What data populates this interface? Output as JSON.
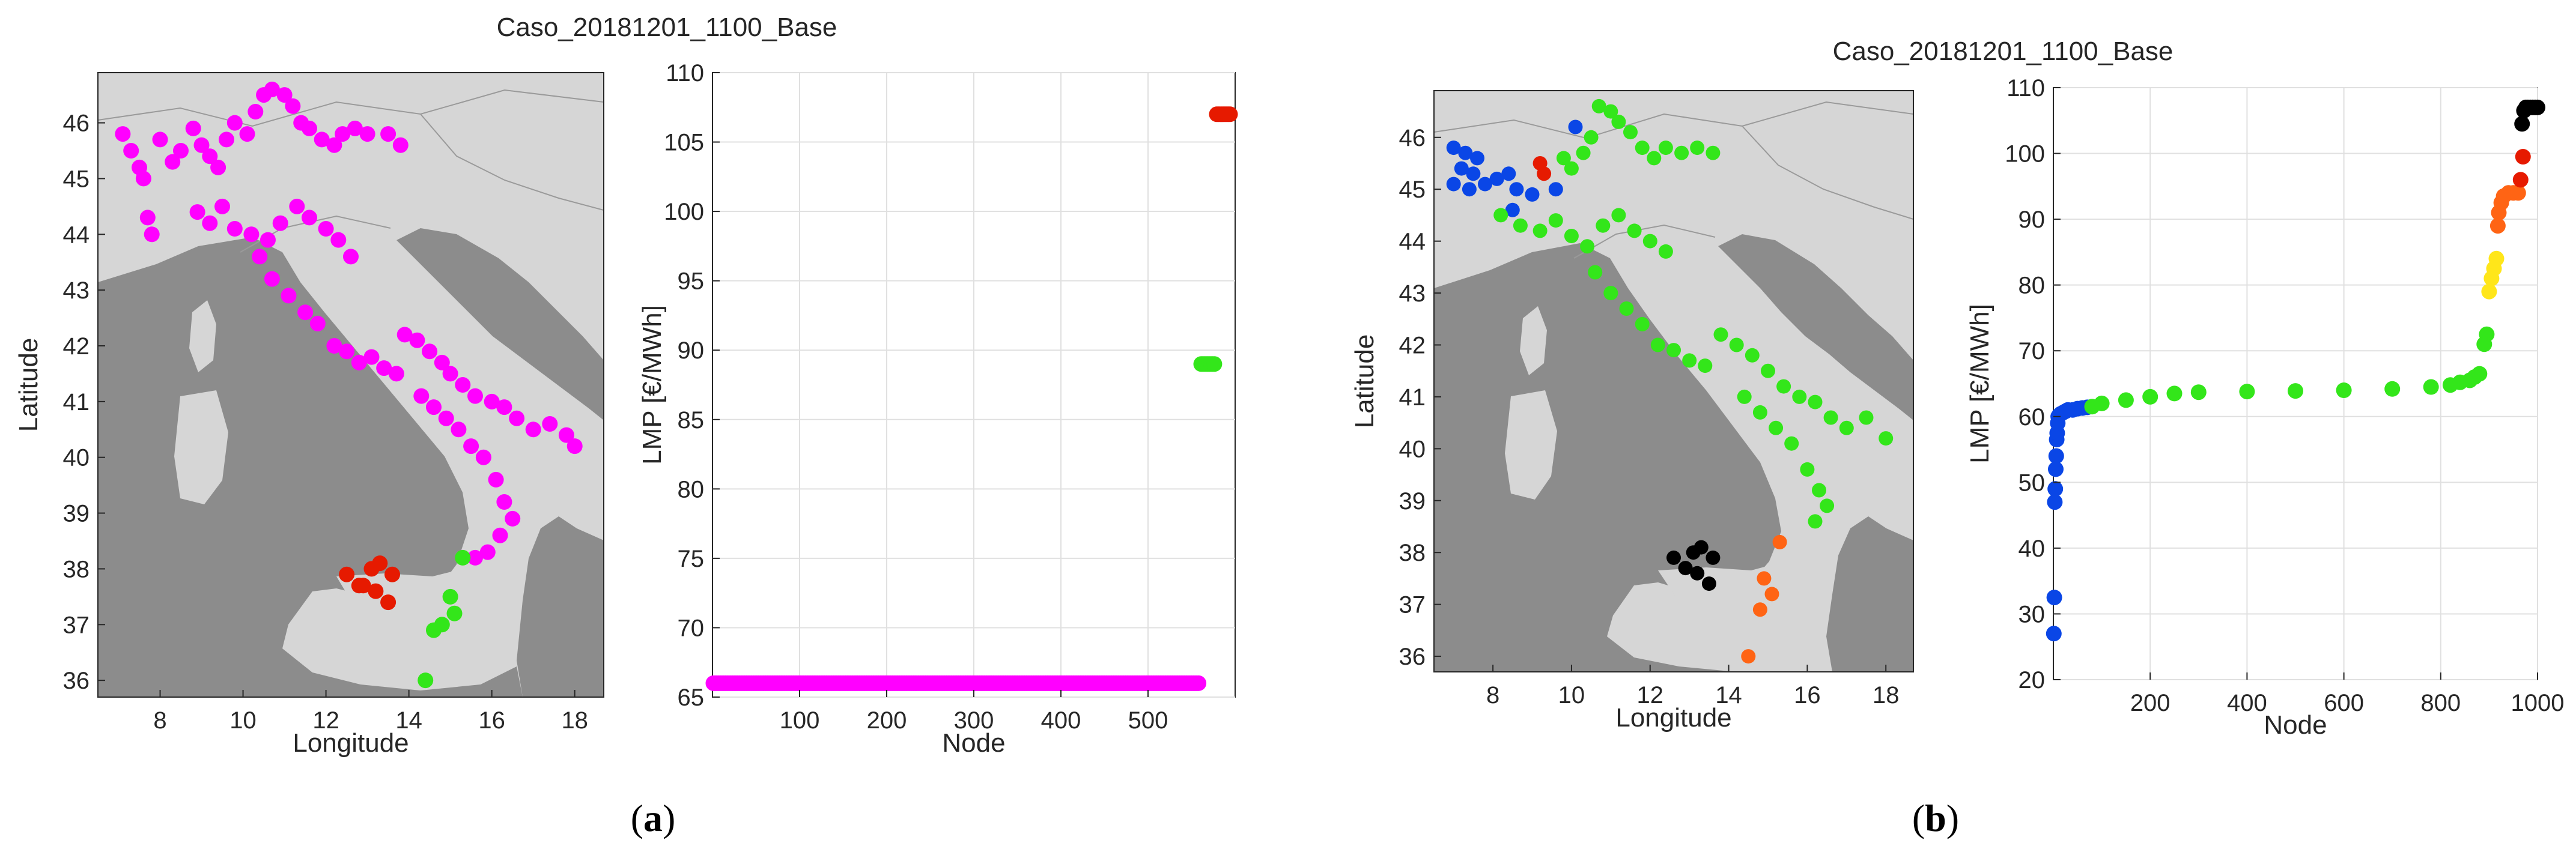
{
  "figure": {
    "panel_a": {
      "title": "Caso_20181201_1100_Base",
      "caption_letter": "a",
      "map": {
        "xlabel": "Longitude",
        "ylabel": "Latitude",
        "xticks": [
          "8",
          "10",
          "12",
          "14",
          "16",
          "18"
        ],
        "yticks": [
          "36",
          "37",
          "38",
          "39",
          "40",
          "41",
          "42",
          "43",
          "44",
          "45",
          "46"
        ]
      },
      "lmp": {
        "xlabel": "Node",
        "ylabel": "LMP [€/MWh]",
        "xticks": [
          "100",
          "200",
          "300",
          "400",
          "500"
        ],
        "yticks": [
          "65",
          "70",
          "75",
          "80",
          "85",
          "90",
          "95",
          "100",
          "105",
          "110"
        ]
      }
    },
    "panel_b": {
      "title": "Caso_20181201_1100_Base",
      "caption_letter": "b",
      "map": {
        "xlabel": "Longitude",
        "ylabel": "Latitude",
        "xticks": [
          "8",
          "10",
          "12",
          "14",
          "16",
          "18"
        ],
        "yticks": [
          "36",
          "37",
          "38",
          "39",
          "40",
          "41",
          "42",
          "43",
          "44",
          "45",
          "46"
        ]
      },
      "lmp": {
        "xlabel": "Node",
        "ylabel": "LMP [€/MWh]",
        "xticks": [
          "200",
          "400",
          "600",
          "800",
          "1000"
        ],
        "yticks": [
          "20",
          "30",
          "40",
          "50",
          "60",
          "70",
          "80",
          "90",
          "100",
          "110"
        ]
      }
    }
  },
  "colors": {
    "magenta": "#ff00ff",
    "red": "#e61a00",
    "green": "#33e61a",
    "blue": "#0a46e6",
    "black": "#000000",
    "orange": "#ff6414",
    "yellow": "#ffe61a",
    "land": "#d6d6d6",
    "sea": "#8c8c8c",
    "axis": "#262626",
    "grid": "#e0e0e0"
  },
  "chart_data": [
    {
      "type": "scatter",
      "panel": "a-map",
      "xlabel": "Longitude",
      "ylabel": "Latitude",
      "xlim": [
        6.5,
        18.7
      ],
      "ylim": [
        35.7,
        46.9
      ],
      "series": [
        {
          "color": "#ff00ff",
          "points": [
            [
              7.1,
              45.8
            ],
            [
              7.3,
              45.5
            ],
            [
              7.5,
              45.2
            ],
            [
              7.6,
              45.0
            ],
            [
              7.7,
              44.3
            ],
            [
              7.8,
              44.0
            ],
            [
              8.0,
              45.7
            ],
            [
              8.3,
              45.3
            ],
            [
              8.5,
              45.5
            ],
            [
              8.8,
              45.9
            ],
            [
              9.0,
              45.6
            ],
            [
              9.2,
              45.4
            ],
            [
              9.4,
              45.2
            ],
            [
              9.6,
              45.7
            ],
            [
              9.8,
              46.0
            ],
            [
              10.1,
              45.8
            ],
            [
              10.3,
              46.2
            ],
            [
              10.5,
              46.5
            ],
            [
              10.7,
              46.6
            ],
            [
              11.0,
              46.5
            ],
            [
              11.2,
              46.3
            ],
            [
              11.4,
              46.0
            ],
            [
              11.6,
              45.9
            ],
            [
              11.9,
              45.7
            ],
            [
              12.2,
              45.6
            ],
            [
              12.4,
              45.8
            ],
            [
              12.7,
              45.9
            ],
            [
              13.0,
              45.8
            ],
            [
              13.5,
              45.8
            ],
            [
              13.8,
              45.6
            ],
            [
              8.9,
              44.4
            ],
            [
              9.2,
              44.2
            ],
            [
              9.5,
              44.5
            ],
            [
              9.8,
              44.1
            ],
            [
              10.2,
              44.0
            ],
            [
              10.6,
              43.9
            ],
            [
              10.9,
              44.2
            ],
            [
              11.3,
              44.5
            ],
            [
              11.6,
              44.3
            ],
            [
              12.0,
              44.1
            ],
            [
              12.3,
              43.9
            ],
            [
              12.6,
              43.6
            ],
            [
              10.4,
              43.6
            ],
            [
              10.7,
              43.2
            ],
            [
              11.1,
              42.9
            ],
            [
              11.5,
              42.6
            ],
            [
              11.8,
              42.4
            ],
            [
              12.2,
              42.0
            ],
            [
              12.5,
              41.9
            ],
            [
              12.8,
              41.7
            ],
            [
              13.1,
              41.8
            ],
            [
              13.4,
              41.6
            ],
            [
              13.7,
              41.5
            ],
            [
              13.9,
              42.2
            ],
            [
              14.2,
              42.1
            ],
            [
              14.5,
              41.9
            ],
            [
              14.8,
              41.7
            ],
            [
              15.0,
              41.5
            ],
            [
              15.3,
              41.3
            ],
            [
              15.6,
              41.1
            ],
            [
              16.0,
              41.0
            ],
            [
              16.3,
              40.9
            ],
            [
              16.6,
              40.7
            ],
            [
              17.0,
              40.5
            ],
            [
              17.4,
              40.6
            ],
            [
              17.8,
              40.4
            ],
            [
              18.0,
              40.2
            ],
            [
              14.3,
              41.1
            ],
            [
              14.6,
              40.9
            ],
            [
              14.9,
              40.7
            ],
            [
              15.2,
              40.5
            ],
            [
              15.5,
              40.2
            ],
            [
              15.8,
              40.0
            ],
            [
              16.1,
              39.6
            ],
            [
              16.3,
              39.2
            ],
            [
              16.5,
              38.9
            ],
            [
              16.2,
              38.6
            ],
            [
              15.9,
              38.3
            ],
            [
              15.6,
              38.2
            ]
          ]
        },
        {
          "color": "#e61a00",
          "points": [
            [
              12.5,
              37.9
            ],
            [
              12.8,
              37.7
            ],
            [
              13.1,
              38.0
            ],
            [
              13.3,
              38.1
            ],
            [
              13.6,
              37.9
            ],
            [
              13.5,
              37.4
            ],
            [
              13.2,
              37.6
            ],
            [
              12.9,
              37.7
            ]
          ]
        },
        {
          "color": "#33e61a",
          "points": [
            [
              15.0,
              37.5
            ],
            [
              15.1,
              37.2
            ],
            [
              14.8,
              37.0
            ],
            [
              14.6,
              36.9
            ],
            [
              14.4,
              36.0
            ],
            [
              15.3,
              38.2
            ]
          ]
        }
      ]
    },
    {
      "type": "scatter",
      "panel": "a-lmp",
      "xlabel": "Node",
      "ylabel": "LMP [€/MWh]",
      "xlim": [
        0,
        600
      ],
      "ylim": [
        65,
        110
      ],
      "series": [
        {
          "color": "#ff00ff",
          "x_range": [
            1,
            560
          ],
          "y": 66
        },
        {
          "color": "#33e61a",
          "x_range": [
            561,
            578
          ],
          "y": 89
        },
        {
          "color": "#e61a00",
          "x_range": [
            579,
            596
          ],
          "y": 107
        }
      ]
    },
    {
      "type": "scatter",
      "panel": "b-map",
      "xlabel": "Longitude",
      "ylabel": "Latitude",
      "xlim": [
        6.5,
        18.7
      ],
      "ylim": [
        35.7,
        46.9
      ],
      "series": [
        {
          "color": "#0a46e6",
          "points": [
            [
              7.0,
              45.8
            ],
            [
              7.3,
              45.7
            ],
            [
              7.6,
              45.6
            ],
            [
              7.2,
              45.4
            ],
            [
              7.5,
              45.3
            ],
            [
              7.0,
              45.1
            ],
            [
              7.4,
              45.0
            ],
            [
              7.8,
              45.1
            ],
            [
              8.1,
              45.2
            ],
            [
              8.4,
              45.3
            ],
            [
              8.6,
              45.0
            ],
            [
              8.5,
              44.6
            ],
            [
              9.0,
              44.9
            ],
            [
              9.6,
              45.0
            ],
            [
              10.1,
              46.2
            ]
          ]
        },
        {
          "color": "#e61a00",
          "points": [
            [
              9.2,
              45.5
            ],
            [
              9.3,
              45.3
            ]
          ]
        },
        {
          "color": "#000000",
          "points": [
            [
              12.6,
              37.9
            ],
            [
              12.9,
              37.7
            ],
            [
              13.1,
              38.0
            ],
            [
              13.3,
              38.1
            ],
            [
              13.6,
              37.9
            ],
            [
              13.5,
              37.4
            ],
            [
              13.2,
              37.6
            ]
          ]
        },
        {
          "color": "#ff6414",
          "points": [
            [
              14.9,
              37.5
            ],
            [
              15.1,
              37.2
            ],
            [
              14.8,
              36.9
            ],
            [
              14.5,
              36.0
            ],
            [
              15.3,
              38.2
            ]
          ]
        },
        {
          "color": "#33e61a",
          "points": [
            [
              9.8,
              45.6
            ],
            [
              10.0,
              45.4
            ],
            [
              10.3,
              45.7
            ],
            [
              10.5,
              46.0
            ],
            [
              10.7,
              46.6
            ],
            [
              11.0,
              46.5
            ],
            [
              11.2,
              46.3
            ],
            [
              11.5,
              46.1
            ],
            [
              11.8,
              45.8
            ],
            [
              12.1,
              45.6
            ],
            [
              12.4,
              45.8
            ],
            [
              12.8,
              45.7
            ],
            [
              13.2,
              45.8
            ],
            [
              13.6,
              45.7
            ],
            [
              8.2,
              44.5
            ],
            [
              8.7,
              44.3
            ],
            [
              9.2,
              44.2
            ],
            [
              9.6,
              44.4
            ],
            [
              10.0,
              44.1
            ],
            [
              10.4,
              43.9
            ],
            [
              10.8,
              44.3
            ],
            [
              11.2,
              44.5
            ],
            [
              11.6,
              44.2
            ],
            [
              12.0,
              44.0
            ],
            [
              12.4,
              43.8
            ],
            [
              10.6,
              43.4
            ],
            [
              11.0,
              43.0
            ],
            [
              11.4,
              42.7
            ],
            [
              11.8,
              42.4
            ],
            [
              12.2,
              42.0
            ],
            [
              12.6,
              41.9
            ],
            [
              13.0,
              41.7
            ],
            [
              13.4,
              41.6
            ],
            [
              13.8,
              42.2
            ],
            [
              14.2,
              42.0
            ],
            [
              14.6,
              41.8
            ],
            [
              15.0,
              41.5
            ],
            [
              15.4,
              41.2
            ],
            [
              15.8,
              41.0
            ],
            [
              16.2,
              40.9
            ],
            [
              16.6,
              40.6
            ],
            [
              17.0,
              40.4
            ],
            [
              17.5,
              40.6
            ],
            [
              18.0,
              40.2
            ],
            [
              14.4,
              41.0
            ],
            [
              14.8,
              40.7
            ],
            [
              15.2,
              40.4
            ],
            [
              15.6,
              40.1
            ],
            [
              16.0,
              39.6
            ],
            [
              16.3,
              39.2
            ],
            [
              16.5,
              38.9
            ],
            [
              16.2,
              38.6
            ]
          ]
        }
      ]
    },
    {
      "type": "scatter",
      "panel": "b-lmp",
      "xlabel": "Node",
      "ylabel": "LMP [€/MWh]",
      "xlim": [
        0,
        1000
      ],
      "ylim": [
        20,
        110
      ],
      "series": [
        {
          "color": "#0a46e6",
          "x": [
            1,
            2,
            3,
            4,
            5,
            6,
            7,
            8,
            9,
            10,
            12,
            15,
            20,
            25,
            30,
            40,
            50,
            60,
            70
          ],
          "y": [
            27,
            32.5,
            47,
            49,
            52,
            54,
            56.5,
            57.5,
            59,
            60,
            60.2,
            60.4,
            60.6,
            60.8,
            61,
            61,
            61.2,
            61.3,
            61.4
          ]
        },
        {
          "color": "#33e61a",
          "x": [
            80,
            100,
            150,
            200,
            250,
            300,
            400,
            500,
            600,
            700,
            780,
            820,
            840,
            860,
            870,
            880,
            890,
            895
          ],
          "y": [
            61.5,
            62,
            62.5,
            63,
            63.5,
            63.7,
            63.8,
            63.9,
            64,
            64.2,
            64.5,
            64.8,
            65.2,
            65.5,
            66,
            66.5,
            71,
            72.5
          ]
        },
        {
          "color": "#ffe61a",
          "x": [
            900,
            905,
            910,
            915
          ],
          "y": [
            79,
            81,
            82.5,
            84
          ]
        },
        {
          "color": "#ff6414",
          "x": [
            918,
            920,
            925,
            930,
            940,
            950,
            960
          ],
          "y": [
            89,
            91,
            92.5,
            93.5,
            94,
            94,
            94
          ]
        },
        {
          "color": "#e61a00",
          "x": [
            965,
            970
          ],
          "y": [
            96,
            99.5
          ]
        },
        {
          "color": "#000000",
          "x": [
            968,
            972,
            976,
            980,
            985,
            990,
            995,
            1000
          ],
          "y": [
            104.5,
            106.5,
            107,
            107,
            107,
            107,
            107,
            107
          ]
        }
      ]
    }
  ]
}
